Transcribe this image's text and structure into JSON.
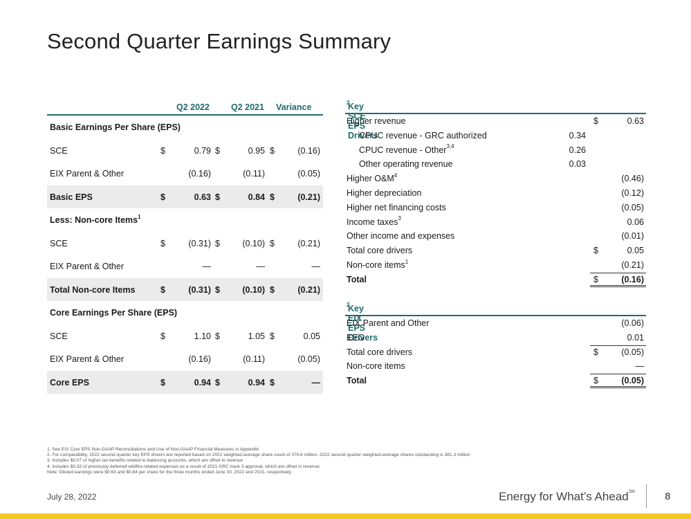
{
  "page": {
    "title": "Second Quarter Earnings Summary",
    "date": "July 28, 2022",
    "tagline": "Energy for What’s Ahead",
    "tagline_mark": "SM",
    "page_number": "8"
  },
  "eps_table": {
    "headers": [
      "Q2 2022",
      "Q2 2021",
      "Variance"
    ],
    "rows": [
      {
        "label": "Basic Earnings Per Share (EPS)",
        "bold": true,
        "shade": false
      },
      {
        "label": "SCE",
        "d": [
          "$",
          "$",
          "$"
        ],
        "v": [
          "0.79",
          "0.95",
          "(0.16)"
        ]
      },
      {
        "label": "EIX Parent & Other",
        "v": [
          "(0.16)",
          "(0.11)",
          "(0.05)"
        ]
      },
      {
        "label": "Basic EPS",
        "bold": true,
        "shade": true,
        "d": [
          "$",
          "$",
          "$"
        ],
        "v": [
          "0.63",
          "0.84",
          "(0.21)"
        ]
      },
      {
        "label": "Less: Non-core Items",
        "sup": "1",
        "bold": true
      },
      {
        "label": "SCE",
        "d": [
          "$",
          "$",
          "$"
        ],
        "v": [
          "(0.31)",
          "(0.10)",
          "(0.21)"
        ]
      },
      {
        "label": "EIX Parent & Other",
        "v": [
          "—",
          "—",
          "—"
        ]
      },
      {
        "label": "Total Non-core Items",
        "bold": true,
        "shade": true,
        "d": [
          "$",
          "$",
          "$"
        ],
        "v": [
          "(0.31)",
          "(0.10)",
          "(0.21)"
        ]
      },
      {
        "label": "Core Earnings Per Share (EPS)",
        "bold": true
      },
      {
        "label": "SCE",
        "d": [
          "$",
          "$",
          "$"
        ],
        "v": [
          "1.10",
          "1.05",
          "0.05"
        ]
      },
      {
        "label": "EIX Parent & Other",
        "v": [
          "(0.16)",
          "(0.11)",
          "(0.05)"
        ]
      },
      {
        "label": "Core EPS",
        "bold": true,
        "shade": true,
        "d": [
          "$",
          "$",
          "$"
        ],
        "v": [
          "0.94",
          "0.94",
          "—"
        ]
      }
    ]
  },
  "sce_drivers": {
    "heading": "Key SCE EPS Drivers",
    "heading_sup": "2",
    "rows": [
      {
        "label": "Higher revenue",
        "dollar": "$",
        "value": "0.63"
      },
      {
        "label": "CPUC revenue - GRC authorized",
        "sub": true,
        "mid": "0.34"
      },
      {
        "label": "CPUC revenue - Other",
        "sup": "3,4",
        "sub": true,
        "mid": "0.26"
      },
      {
        "label": "Other operating revenue",
        "sub": true,
        "mid": "0.03"
      },
      {
        "label": "Higher O&M",
        "sup": "4",
        "value": "(0.46)"
      },
      {
        "label": "Higher depreciation",
        "value": "(0.12)"
      },
      {
        "label": "Higher net financing costs",
        "value": "(0.05)"
      },
      {
        "label": "Income taxes",
        "sup": "3",
        "value": "0.06"
      },
      {
        "label": "Other income and expenses",
        "value": "(0.01)",
        "rule_bottom_single": true
      },
      {
        "label": "Total core drivers",
        "dollar": "$",
        "value": "0.05"
      },
      {
        "label": "Non-core items",
        "sup": "1",
        "value": "(0.21)"
      },
      {
        "label": "Total",
        "bold": true,
        "dollar": "$",
        "value": "(0.16)",
        "total": true
      }
    ]
  },
  "eix_drivers": {
    "heading": "Key EIX EPS Drivers",
    "heading_sup": "2",
    "rows": [
      {
        "label": "EIX Parent and Other",
        "value": "(0.06)"
      },
      {
        "label": "EEG",
        "value": "0.01"
      },
      {
        "label": "Total core drivers",
        "dollar": "$",
        "value": "(0.05)",
        "rule_top": true
      },
      {
        "label": "Non-core items",
        "value": "—"
      },
      {
        "label": "Total",
        "bold": true,
        "dollar": "$",
        "value": "(0.05)",
        "total": true
      }
    ]
  },
  "footnotes": [
    "1.  See EIX Core EPS Non-GAAP Reconciliations and Use of Non-GAAP Financial Measures in Appendix",
    "2.  For comparability, 2022 second quarter key EPS drivers are reported based on 2021 weighted-average share count of 379.6 million. 2022 second quarter weighted-average shares outstanding is 381.3 million",
    "3.  Includes $0.07 of higher tax benefits related to balancing accounts, which are offset in revenue",
    "4.  Includes $0.32 of previously deferred wildfire-related expenses as a result of 2021 GRC track 3 approval, which are offset in revenue",
    "Note: Diluted earnings were $0.63 and $0.84 per share for the three months ended June 30, 2022 and 2021, respectively"
  ],
  "colors": {
    "accent": "#1e6b6b",
    "brand_bar": "#f3c623",
    "shade": "#ebebeb"
  }
}
